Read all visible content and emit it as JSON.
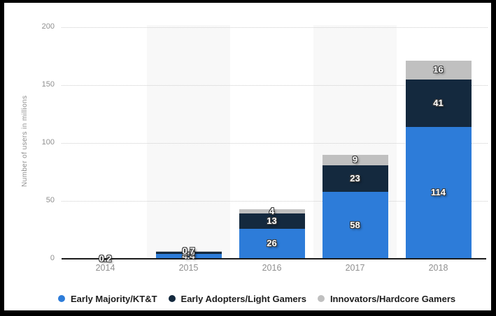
{
  "chart_data": {
    "type": "bar",
    "stacked": true,
    "title": "",
    "ylabel": "Number of users in millions",
    "xlabel": "",
    "ylim": [
      0,
      200
    ],
    "yticks": [
      0,
      50,
      100,
      150,
      200
    ],
    "grid": "horizontal-dotted",
    "legend_position": "bottom",
    "axis_color": "#1a1a1a",
    "tick_color": "#8f8f8f",
    "categories": [
      "2014",
      "2015",
      "2016",
      "2017",
      "2018"
    ],
    "series": [
      {
        "name": "Early Majority/KT&T",
        "color": "#2d7cd9",
        "values": [
          0,
          4.4,
          26,
          58,
          114
        ],
        "data_labels": [
          "",
          "4.4",
          "26",
          "58",
          "114"
        ]
      },
      {
        "name": "Early Adopters/Light Gamers",
        "color": "#14293e",
        "values": [
          0,
          1.6,
          13,
          23,
          41
        ],
        "data_labels": [
          "",
          "1.6",
          "13",
          "23",
          "41"
        ]
      },
      {
        "name": "Innovators/Hardcore Gamers",
        "color": "#c0c0c0",
        "values": [
          0.2,
          0.7,
          4,
          9,
          16
        ],
        "data_labels": [
          "0.2",
          "0.7",
          "4",
          "9",
          "16"
        ]
      }
    ]
  },
  "legend": {
    "items": [
      {
        "label": "Early Majority/KT&T",
        "color": "#2d7cd9"
      },
      {
        "label": "Early Adopters/Light Gamers",
        "color": "#14293e"
      },
      {
        "label": "Innovators/Hardcore Gamers",
        "color": "#c0c0c0"
      }
    ]
  }
}
